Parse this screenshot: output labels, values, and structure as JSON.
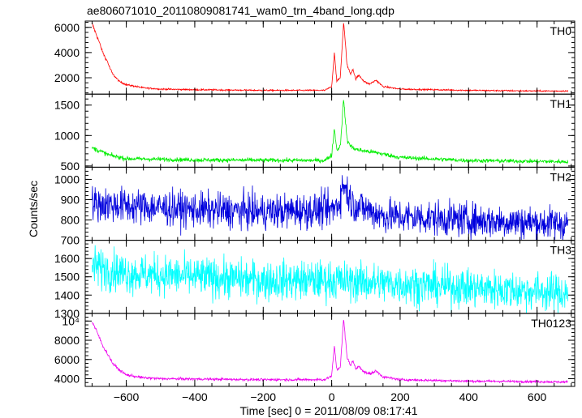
{
  "chart_data": {
    "type": "line",
    "title": "ae806071010_20110809081741_wam0_trn_4band_long.qdp",
    "xlabel": "Time [sec] 0 = 2011/08/09 08:17:41",
    "ylabel": "Counts/sec",
    "xlim": [
      -720,
      710
    ],
    "xticks": [
      "−600",
      "−400",
      "−200",
      "0",
      "200",
      "400",
      "600"
    ],
    "xtick_values": [
      -600,
      -400,
      -200,
      0,
      200,
      400,
      600
    ],
    "grid": false,
    "panels": [
      {
        "name": "TH0",
        "color": "#ff0000",
        "ylim": [
          700,
          6500
        ],
        "yticks": [
          "2000",
          "4000",
          "6000"
        ],
        "ytick_values": [
          2000,
          4000,
          6000
        ],
        "noise": 50,
        "profile": [
          {
            "x": -700,
            "y": 6300
          },
          {
            "x": -690,
            "y": 5600
          },
          {
            "x": -680,
            "y": 4900
          },
          {
            "x": -670,
            "y": 4100
          },
          {
            "x": -660,
            "y": 3500
          },
          {
            "x": -655,
            "y": 3300
          },
          {
            "x": -650,
            "y": 2900
          },
          {
            "x": -640,
            "y": 2300
          },
          {
            "x": -620,
            "y": 1700
          },
          {
            "x": -600,
            "y": 1450
          },
          {
            "x": -550,
            "y": 1200
          },
          {
            "x": -500,
            "y": 1100
          },
          {
            "x": -400,
            "y": 1050
          },
          {
            "x": -200,
            "y": 1000
          },
          {
            "x": -20,
            "y": 1000
          },
          {
            "x": 0,
            "y": 1300
          },
          {
            "x": 8,
            "y": 4000
          },
          {
            "x": 15,
            "y": 1700
          },
          {
            "x": 25,
            "y": 2000
          },
          {
            "x": 35,
            "y": 6400
          },
          {
            "x": 45,
            "y": 3000
          },
          {
            "x": 55,
            "y": 2300
          },
          {
            "x": 62,
            "y": 2700
          },
          {
            "x": 70,
            "y": 1900
          },
          {
            "x": 80,
            "y": 2200
          },
          {
            "x": 95,
            "y": 1700
          },
          {
            "x": 110,
            "y": 1500
          },
          {
            "x": 130,
            "y": 1800
          },
          {
            "x": 150,
            "y": 1300
          },
          {
            "x": 200,
            "y": 1100
          },
          {
            "x": 400,
            "y": 1000
          },
          {
            "x": 600,
            "y": 950
          },
          {
            "x": 690,
            "y": 950
          }
        ]
      },
      {
        "name": "TH1",
        "color": "#00ee00",
        "ylim": [
          480,
          1680
        ],
        "yticks": [
          "500",
          "1000",
          "1500"
        ],
        "ytick_values": [
          500,
          1000,
          1500
        ],
        "noise": 30,
        "profile": [
          {
            "x": -700,
            "y": 800
          },
          {
            "x": -650,
            "y": 680
          },
          {
            "x": -600,
            "y": 620
          },
          {
            "x": -400,
            "y": 600
          },
          {
            "x": -20,
            "y": 590
          },
          {
            "x": 0,
            "y": 680
          },
          {
            "x": 8,
            "y": 1120
          },
          {
            "x": 15,
            "y": 760
          },
          {
            "x": 25,
            "y": 820
          },
          {
            "x": 35,
            "y": 1600
          },
          {
            "x": 45,
            "y": 920
          },
          {
            "x": 60,
            "y": 800
          },
          {
            "x": 80,
            "y": 760
          },
          {
            "x": 130,
            "y": 720
          },
          {
            "x": 200,
            "y": 640
          },
          {
            "x": 400,
            "y": 590
          },
          {
            "x": 690,
            "y": 570
          }
        ]
      },
      {
        "name": "TH2",
        "color": "#0000dd",
        "ylim": [
          700,
          1060
        ],
        "yticks": [
          "700",
          "800",
          "900",
          "1000"
        ],
        "ytick_values": [
          700,
          800,
          900,
          1000
        ],
        "noise": 75,
        "profile": [
          {
            "x": -700,
            "y": 880
          },
          {
            "x": -600,
            "y": 870
          },
          {
            "x": -400,
            "y": 850
          },
          {
            "x": -200,
            "y": 840
          },
          {
            "x": 0,
            "y": 850
          },
          {
            "x": 20,
            "y": 880
          },
          {
            "x": 35,
            "y": 980
          },
          {
            "x": 60,
            "y": 880
          },
          {
            "x": 150,
            "y": 820
          },
          {
            "x": 400,
            "y": 800
          },
          {
            "x": 690,
            "y": 780
          }
        ]
      },
      {
        "name": "TH3",
        "color": "#00ffff",
        "ylim": [
          1300,
          1700
        ],
        "yticks": [
          "1300",
          "1400",
          "1500",
          "1600"
        ],
        "ytick_values": [
          1300,
          1400,
          1500,
          1600
        ],
        "noise": 95,
        "profile": [
          {
            "x": -700,
            "y": 1560
          },
          {
            "x": -600,
            "y": 1520
          },
          {
            "x": -400,
            "y": 1500
          },
          {
            "x": -200,
            "y": 1480
          },
          {
            "x": 0,
            "y": 1480
          },
          {
            "x": 200,
            "y": 1460
          },
          {
            "x": 400,
            "y": 1440
          },
          {
            "x": 690,
            "y": 1410
          }
        ]
      },
      {
        "name": "TH0123",
        "color": "#ee00ee",
        "ylim": [
          3200,
          10800
        ],
        "yticks": [
          "4000",
          "6000",
          "8000",
          "10⁴"
        ],
        "ytick_values": [
          4000,
          6000,
          8000,
          10000
        ],
        "noise": 110,
        "profile": [
          {
            "x": -700,
            "y": 9900
          },
          {
            "x": -690,
            "y": 9200
          },
          {
            "x": -680,
            "y": 8400
          },
          {
            "x": -670,
            "y": 7500
          },
          {
            "x": -660,
            "y": 6900
          },
          {
            "x": -650,
            "y": 6300
          },
          {
            "x": -640,
            "y": 5600
          },
          {
            "x": -620,
            "y": 4900
          },
          {
            "x": -600,
            "y": 4400
          },
          {
            "x": -550,
            "y": 4100
          },
          {
            "x": -500,
            "y": 4000
          },
          {
            "x": -200,
            "y": 3900
          },
          {
            "x": -20,
            "y": 3900
          },
          {
            "x": 0,
            "y": 4300
          },
          {
            "x": 8,
            "y": 7400
          },
          {
            "x": 15,
            "y": 4900
          },
          {
            "x": 25,
            "y": 5200
          },
          {
            "x": 35,
            "y": 10200
          },
          {
            "x": 45,
            "y": 6200
          },
          {
            "x": 55,
            "y": 5400
          },
          {
            "x": 62,
            "y": 5900
          },
          {
            "x": 70,
            "y": 5000
          },
          {
            "x": 80,
            "y": 5300
          },
          {
            "x": 95,
            "y": 4700
          },
          {
            "x": 110,
            "y": 4500
          },
          {
            "x": 130,
            "y": 4800
          },
          {
            "x": 150,
            "y": 4200
          },
          {
            "x": 200,
            "y": 3900
          },
          {
            "x": 400,
            "y": 3750
          },
          {
            "x": 600,
            "y": 3700
          },
          {
            "x": 690,
            "y": 3650
          }
        ]
      }
    ]
  }
}
